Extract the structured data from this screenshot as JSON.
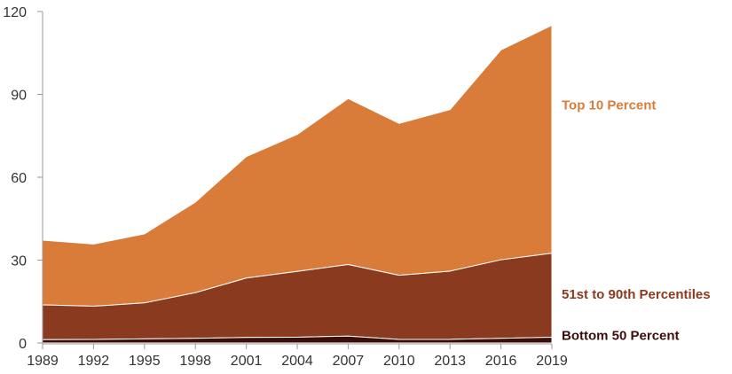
{
  "chart_data": {
    "type": "area",
    "stacked": true,
    "x": [
      1989,
      1992,
      1995,
      1998,
      2001,
      2004,
      2007,
      2010,
      2013,
      2016,
      2019
    ],
    "xticks": [
      "1989",
      "1992",
      "1995",
      "1998",
      "2001",
      "2004",
      "2007",
      "2010",
      "2013",
      "2016",
      "2019"
    ],
    "yticks": [
      "0",
      "30",
      "60",
      "90",
      "120"
    ],
    "ylim": [
      0,
      120
    ],
    "grid": false,
    "legend": "inline-right",
    "series": [
      {
        "name": "Bottom 50 Percent",
        "color": "#3b0e0a",
        "values": [
          1.2,
          1.3,
          1.5,
          1.7,
          2.0,
          2.1,
          2.5,
          1.3,
          1.3,
          1.7,
          2.1
        ]
      },
      {
        "name": "51st to 90th Percentiles",
        "color": "#8a3a1e",
        "values": [
          12.6,
          12.0,
          13.0,
          16.5,
          21.5,
          23.8,
          25.9,
          23.2,
          24.7,
          28.4,
          30.4
        ]
      },
      {
        "name": "Top 10 Percent",
        "color": "#d97c3a",
        "values": [
          23.4,
          22.5,
          25.0,
          32.8,
          44.0,
          49.6,
          60.1,
          55.0,
          58.5,
          76.0,
          82.5
        ]
      }
    ]
  }
}
